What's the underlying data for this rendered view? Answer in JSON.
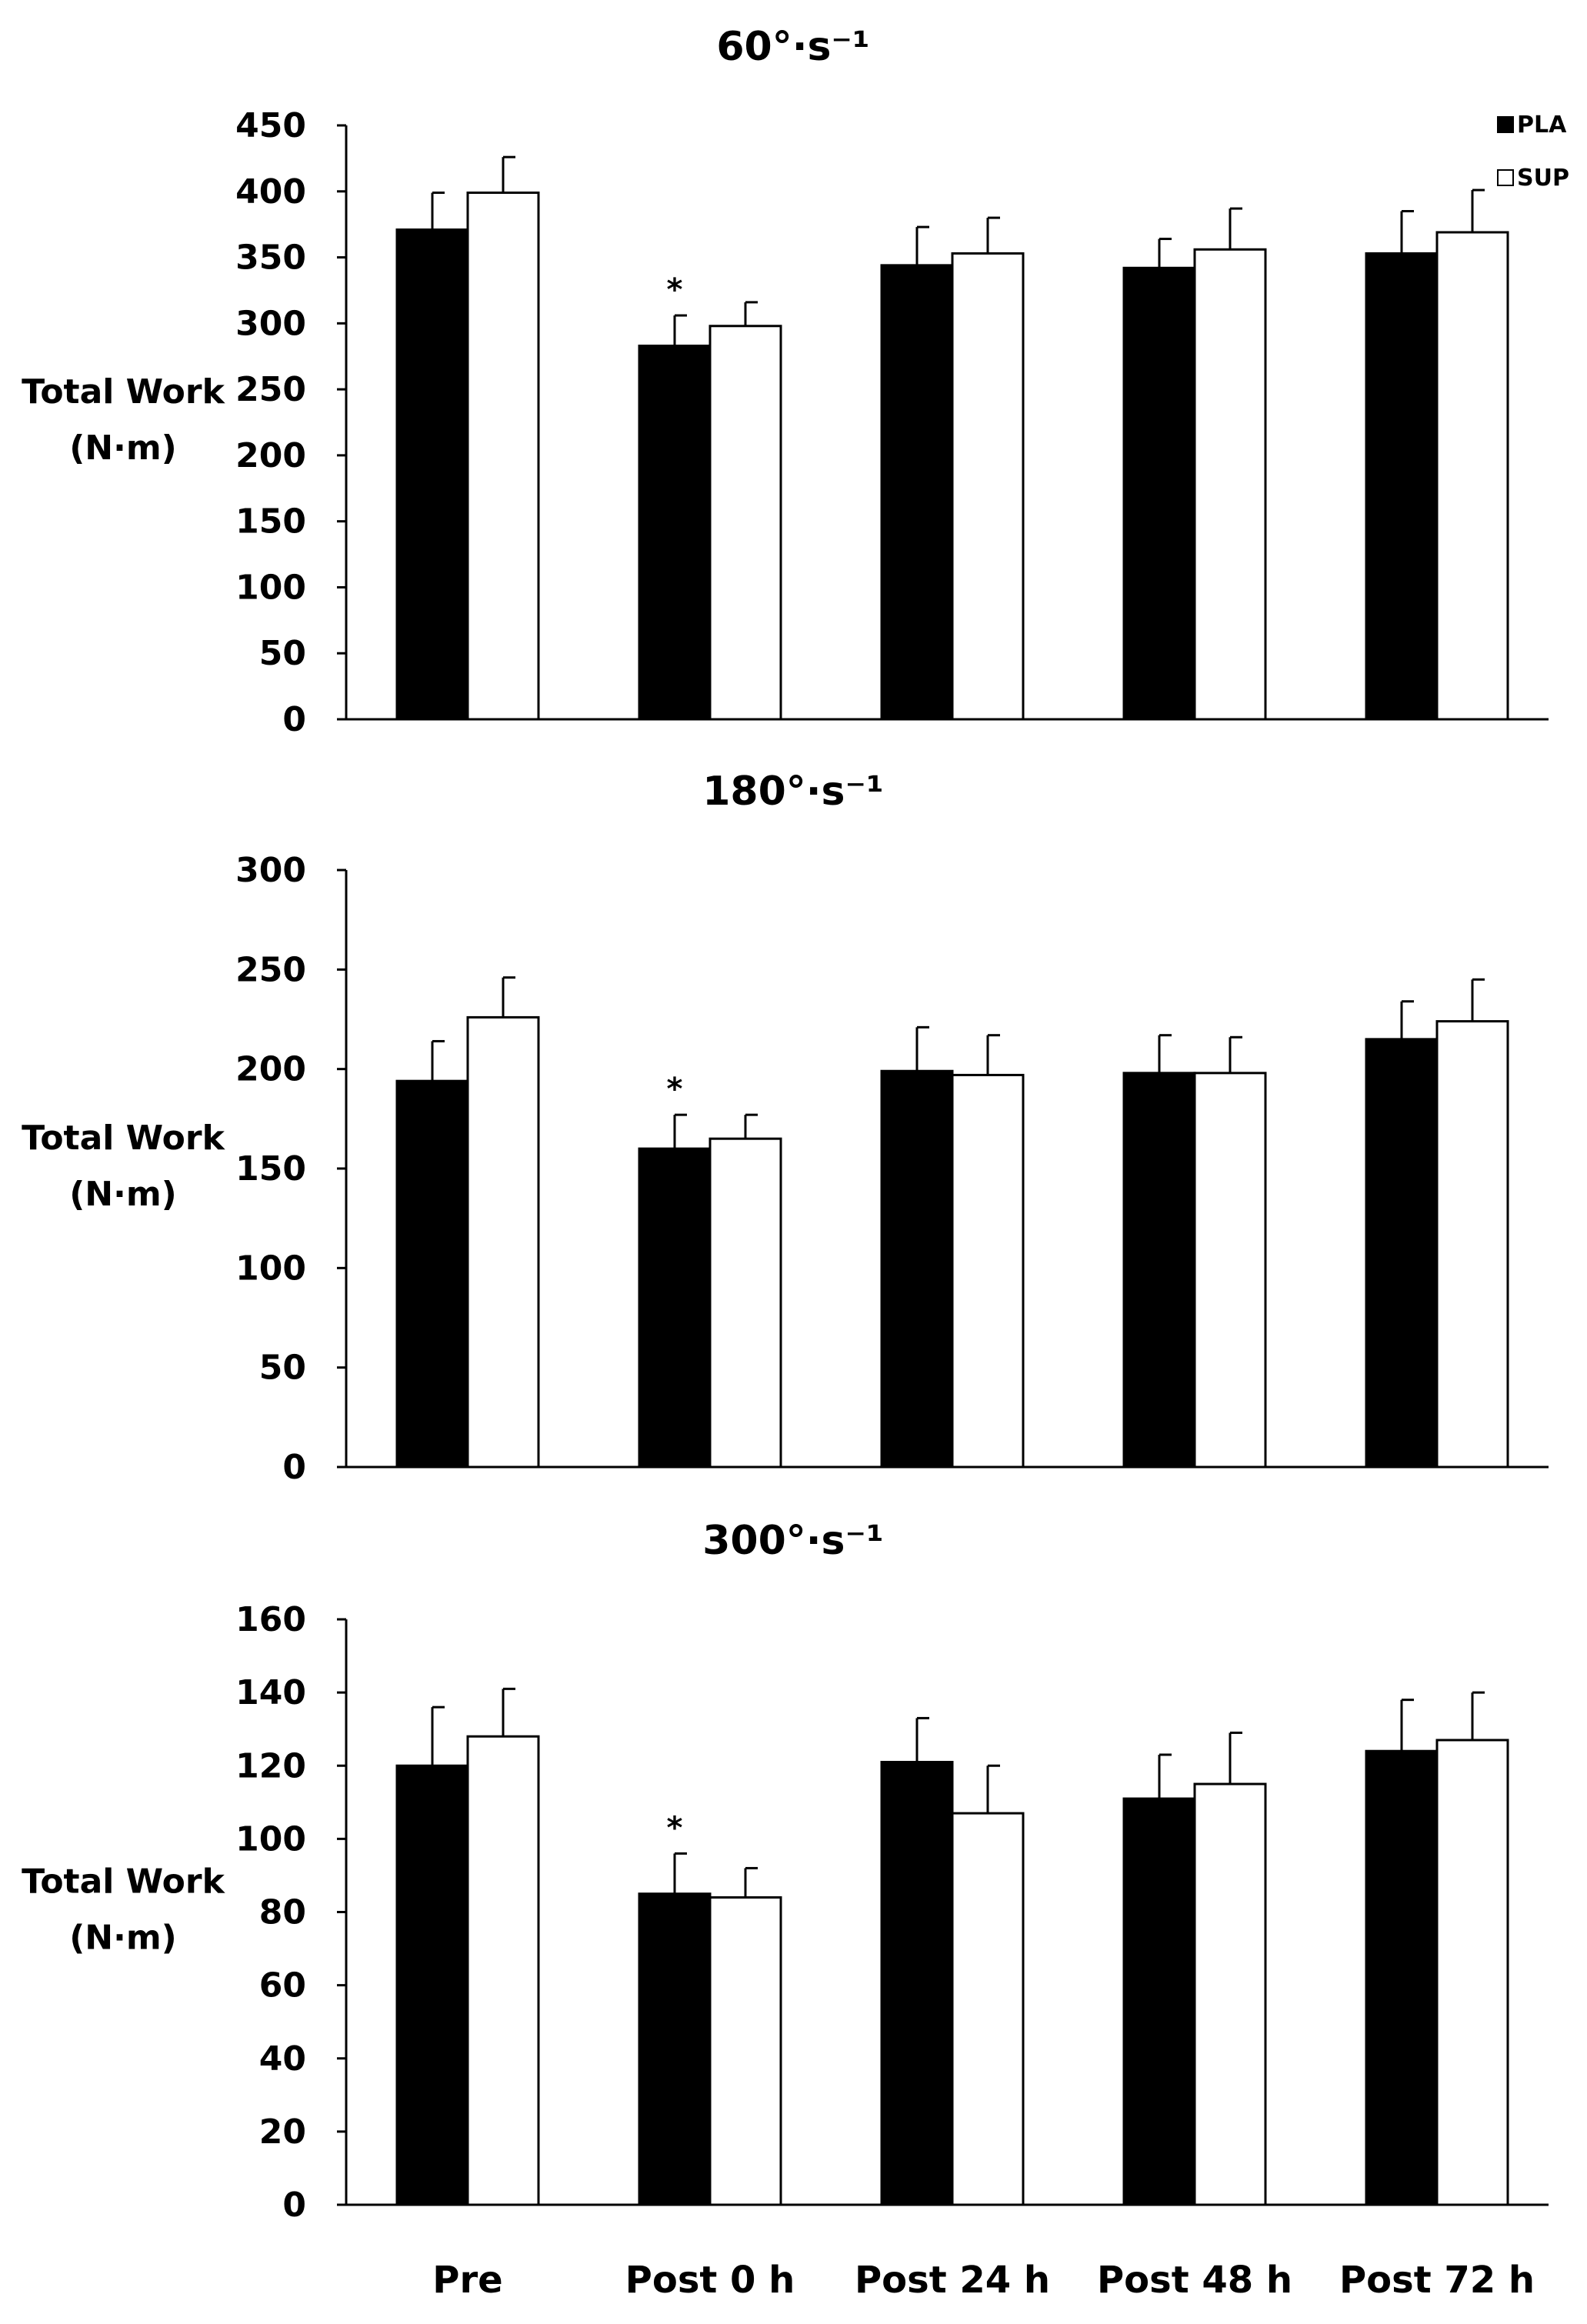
{
  "colors": {
    "PLA": "#000000",
    "SUP": "#ffffff",
    "axis": "#000000",
    "errorbar": "#000000"
  },
  "chart_data": [
    {
      "type": "bar",
      "title": "60°·s⁻¹",
      "xlabel": "",
      "ylabel": [
        "Total Work",
        "(N·m)"
      ],
      "ylim": [
        0,
        450
      ],
      "yticks": [
        0,
        50,
        100,
        150,
        200,
        250,
        300,
        350,
        400,
        450
      ],
      "categories": [
        "Pre",
        "Post 0 h",
        "Post 24 h",
        "Post 48 h",
        "Post 72 h"
      ],
      "show_category_labels": false,
      "legend": {
        "position": "top-right",
        "entries": [
          "PLA",
          "SUP"
        ]
      },
      "series": [
        {
          "name": "PLA",
          "values": [
            371,
            283,
            344,
            342,
            353
          ],
          "errors": [
            28,
            23,
            29,
            22,
            32
          ]
        },
        {
          "name": "SUP",
          "values": [
            399,
            298,
            353,
            356,
            369
          ],
          "errors": [
            27,
            18,
            27,
            31,
            32
          ]
        }
      ],
      "annotations": [
        {
          "category": "Post 0 h",
          "series": "PLA",
          "text": "*"
        }
      ]
    },
    {
      "type": "bar",
      "title": "180°·s⁻¹",
      "xlabel": "",
      "ylabel": [
        "Total Work",
        "(N·m)"
      ],
      "ylim": [
        0,
        300
      ],
      "yticks": [
        0,
        50,
        100,
        150,
        200,
        250,
        300
      ],
      "categories": [
        "Pre",
        "Post 0 h",
        "Post 24 h",
        "Post 48 h",
        "Post 72 h"
      ],
      "show_category_labels": false,
      "series": [
        {
          "name": "PLA",
          "values": [
            194,
            160,
            199,
            198,
            215
          ],
          "errors": [
            20,
            17,
            22,
            19,
            19
          ]
        },
        {
          "name": "SUP",
          "values": [
            226,
            165,
            197,
            198,
            224
          ],
          "errors": [
            20,
            12,
            20,
            18,
            21
          ]
        }
      ],
      "annotations": [
        {
          "category": "Post 0 h",
          "series": "PLA",
          "text": "*"
        }
      ]
    },
    {
      "type": "bar",
      "title": "300°·s⁻¹",
      "xlabel": "",
      "ylabel": [
        "Total Work",
        "(N·m)"
      ],
      "ylim": [
        0,
        160
      ],
      "yticks": [
        0,
        20,
        40,
        60,
        80,
        100,
        120,
        140,
        160
      ],
      "categories": [
        "Pre",
        "Post 0 h",
        "Post 24 h",
        "Post 48 h",
        "Post 72 h"
      ],
      "show_category_labels": true,
      "series": [
        {
          "name": "PLA",
          "values": [
            120,
            85,
            121,
            111,
            124
          ],
          "errors": [
            16,
            11,
            12,
            12,
            14
          ]
        },
        {
          "name": "SUP",
          "values": [
            128,
            84,
            107,
            115,
            127
          ],
          "errors": [
            13,
            8,
            13,
            14,
            13
          ]
        }
      ],
      "annotations": [
        {
          "category": "Post 0 h",
          "series": "PLA",
          "text": "*"
        }
      ]
    }
  ]
}
